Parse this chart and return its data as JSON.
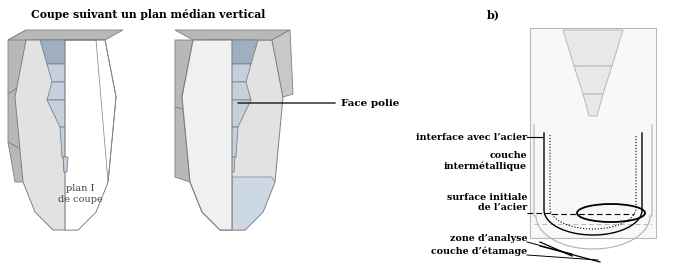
{
  "title_a": "Coupe suivant un plan médian vertical",
  "title_b": "b)",
  "label_face_polie": "Face polie",
  "label_interface": "interface avec l’acier",
  "label_couche_inter": "couche\nintermétallique",
  "label_surface": "surface initiale\nde l’acier",
  "label_zone": "zone d’analyse",
  "label_couche_eta": "couche d’étamage",
  "label_plan": "plan I\nde coupe",
  "bg_color": "#ffffff",
  "text_color": "#000000",
  "fig_width": 6.84,
  "fig_height": 2.64,
  "dpi": 100
}
